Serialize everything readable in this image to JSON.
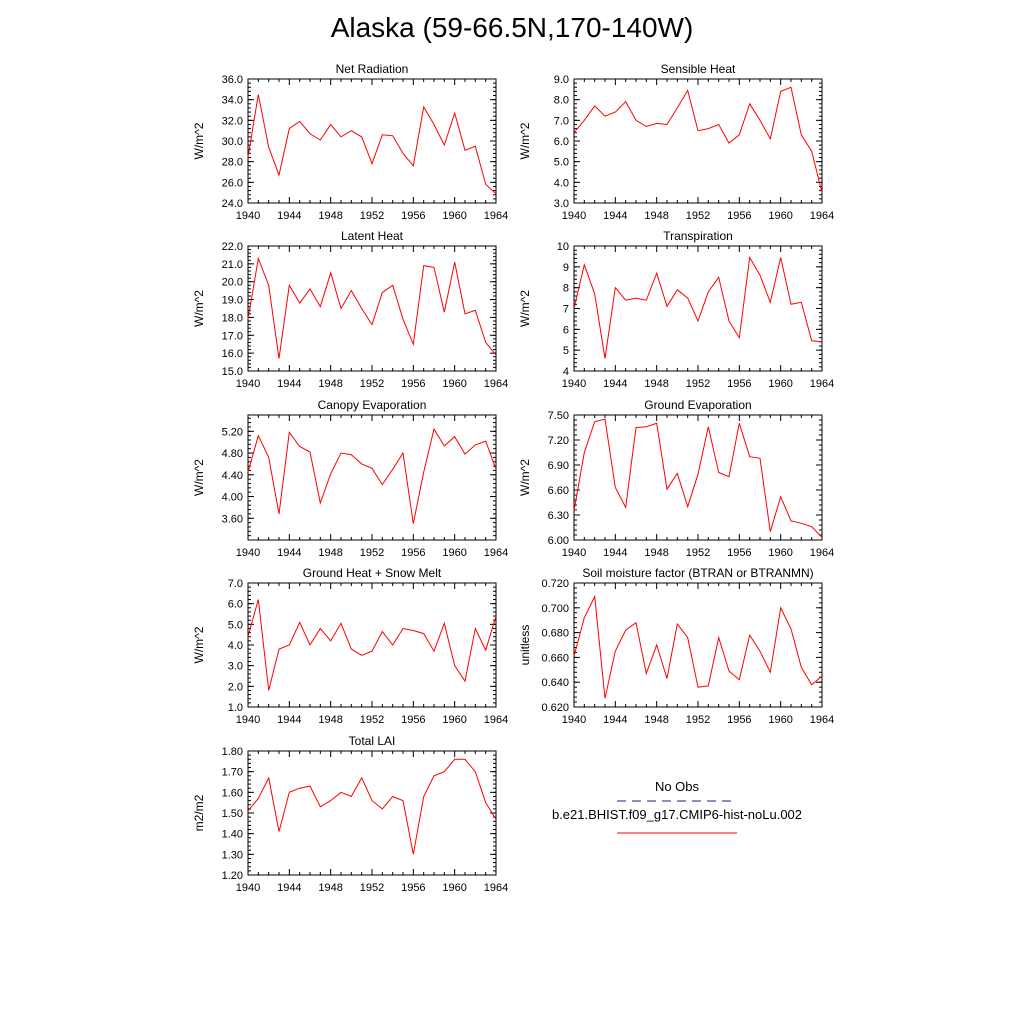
{
  "title": "Alaska (59-66.5N,170-140W)",
  "legend": {
    "items": [
      {
        "label": "No Obs",
        "color": "#1c1c8c",
        "dash": true
      },
      {
        "label": "b.e21.BHIST.f09_g17.CMIP6-hist-noLu.002",
        "color": "#ff0000",
        "dash": false
      }
    ]
  },
  "chart_data": [
    {
      "type": "line",
      "title": "Net Radiation",
      "ylabel": "W/m^2",
      "xlim": [
        1940,
        1964
      ],
      "ylim": [
        24.0,
        36.0
      ],
      "xticks": [
        "1940",
        "1944",
        "1948",
        "1952",
        "1956",
        "1960",
        "1964"
      ],
      "yticks": [
        "24.0",
        "26.0",
        "28.0",
        "30.0",
        "32.0",
        "34.0",
        "36.0"
      ],
      "x": [
        1940,
        1941,
        1942,
        1943,
        1944,
        1945,
        1946,
        1947,
        1948,
        1949,
        1950,
        1951,
        1952,
        1953,
        1954,
        1955,
        1956,
        1957,
        1958,
        1959,
        1960,
        1961,
        1962,
        1963,
        1964
      ],
      "series": [
        {
          "values": [
            28.4,
            34.5,
            29.4,
            26.7,
            31.2,
            31.9,
            30.7,
            30.1,
            31.6,
            30.4,
            31.0,
            30.4,
            27.8,
            30.6,
            30.5,
            28.8,
            27.6,
            33.3,
            31.6,
            29.6,
            32.7,
            29.1,
            29.5,
            25.8,
            24.9
          ],
          "color": "#ff0000"
        }
      ]
    },
    {
      "type": "line",
      "title": "Sensible Heat",
      "ylabel": "W/m^2",
      "xlim": [
        1940,
        1964
      ],
      "ylim": [
        3.0,
        9.0
      ],
      "xticks": [
        "1940",
        "1944",
        "1948",
        "1952",
        "1956",
        "1960",
        "1964"
      ],
      "yticks": [
        "3.0",
        "4.0",
        "5.0",
        "6.0",
        "7.0",
        "8.0",
        "9.0"
      ],
      "x": [
        1940,
        1941,
        1942,
        1943,
        1944,
        1945,
        1946,
        1947,
        1948,
        1949,
        1950,
        1951,
        1952,
        1953,
        1954,
        1955,
        1956,
        1957,
        1958,
        1959,
        1960,
        1961,
        1962,
        1963,
        1964
      ],
      "series": [
        {
          "values": [
            6.4,
            7.0,
            7.7,
            7.2,
            7.4,
            7.9,
            7.0,
            6.7,
            6.85,
            6.8,
            7.6,
            8.45,
            6.5,
            6.6,
            6.8,
            5.9,
            6.3,
            7.8,
            7.0,
            6.1,
            8.4,
            8.6,
            6.3,
            5.5,
            3.5
          ],
          "color": "#ff0000"
        }
      ]
    },
    {
      "type": "line",
      "title": "Latent Heat",
      "ylabel": "W/m^2",
      "xlim": [
        1940,
        1964
      ],
      "ylim": [
        15.0,
        22.0
      ],
      "xticks": [
        "1940",
        "1944",
        "1948",
        "1952",
        "1956",
        "1960",
        "1964"
      ],
      "yticks": [
        "15.0",
        "16.0",
        "17.0",
        "18.0",
        "19.0",
        "20.0",
        "21.0",
        "22.0"
      ],
      "x": [
        1940,
        1941,
        1942,
        1943,
        1944,
        1945,
        1946,
        1947,
        1948,
        1949,
        1950,
        1951,
        1952,
        1953,
        1954,
        1955,
        1956,
        1957,
        1958,
        1959,
        1960,
        1961,
        1962,
        1963,
        1964
      ],
      "series": [
        {
          "values": [
            17.9,
            21.3,
            19.8,
            15.7,
            19.8,
            18.8,
            19.6,
            18.6,
            20.5,
            18.5,
            19.5,
            18.5,
            17.6,
            19.4,
            19.8,
            17.9,
            16.5,
            20.9,
            20.8,
            18.3,
            21.1,
            18.2,
            18.4,
            16.6,
            15.9
          ],
          "color": "#ff0000"
        }
      ]
    },
    {
      "type": "line",
      "title": "Transpiration",
      "ylabel": "W/m^2",
      "xlim": [
        1940,
        1964
      ],
      "ylim": [
        4,
        10
      ],
      "xticks": [
        "1940",
        "1944",
        "1948",
        "1952",
        "1956",
        "1960",
        "1964"
      ],
      "yticks": [
        "4",
        "5",
        "6",
        "7",
        "8",
        "9",
        "10"
      ],
      "x": [
        1940,
        1941,
        1942,
        1943,
        1944,
        1945,
        1946,
        1947,
        1948,
        1949,
        1950,
        1951,
        1952,
        1953,
        1954,
        1955,
        1956,
        1957,
        1958,
        1959,
        1960,
        1961,
        1962,
        1963,
        1964
      ],
      "series": [
        {
          "values": [
            7.0,
            9.1,
            7.7,
            4.6,
            8.0,
            7.4,
            7.5,
            7.4,
            8.7,
            7.1,
            7.9,
            7.5,
            6.4,
            7.8,
            8.5,
            6.4,
            5.6,
            9.45,
            8.6,
            7.3,
            9.45,
            7.2,
            7.3,
            5.45,
            5.4
          ],
          "color": "#ff0000"
        }
      ]
    },
    {
      "type": "line",
      "title": "Canopy Evaporation",
      "ylabel": "W/m^2",
      "xlim": [
        1940,
        1964
      ],
      "ylim": [
        3.2,
        5.5
      ],
      "xticks": [
        "1940",
        "1944",
        "1948",
        "1952",
        "1956",
        "1960",
        "1964"
      ],
      "yticks": [
        "3.60",
        "4.00",
        "4.40",
        "4.80",
        "5.20"
      ],
      "x": [
        1940,
        1941,
        1942,
        1943,
        1944,
        1945,
        1946,
        1947,
        1948,
        1949,
        1950,
        1951,
        1952,
        1953,
        1954,
        1955,
        1956,
        1957,
        1958,
        1959,
        1960,
        1961,
        1962,
        1963,
        1964
      ],
      "series": [
        {
          "values": [
            4.45,
            5.12,
            4.72,
            3.68,
            5.18,
            4.92,
            4.82,
            3.88,
            4.42,
            4.8,
            4.77,
            4.6,
            4.52,
            4.22,
            4.5,
            4.8,
            3.5,
            4.45,
            5.24,
            4.93,
            5.1,
            4.78,
            4.95,
            5.02,
            4.5
          ],
          "color": "#ff0000"
        }
      ]
    },
    {
      "type": "line",
      "title": "Ground Evaporation",
      "ylabel": "W/m^2",
      "xlim": [
        1940,
        1964
      ],
      "ylim": [
        6.0,
        7.5
      ],
      "xticks": [
        "1940",
        "1944",
        "1948",
        "1952",
        "1956",
        "1960",
        "1964"
      ],
      "yticks": [
        "6.00",
        "6.30",
        "6.60",
        "6.90",
        "7.20",
        "7.50"
      ],
      "x": [
        1940,
        1941,
        1942,
        1943,
        1944,
        1945,
        1946,
        1947,
        1948,
        1949,
        1950,
        1951,
        1952,
        1953,
        1954,
        1955,
        1956,
        1957,
        1958,
        1959,
        1960,
        1961,
        1962,
        1963,
        1964
      ],
      "series": [
        {
          "values": [
            6.35,
            7.05,
            7.42,
            7.45,
            6.63,
            6.39,
            7.35,
            7.36,
            7.4,
            6.61,
            6.8,
            6.4,
            6.79,
            7.36,
            6.81,
            6.76,
            7.4,
            7.0,
            6.98,
            6.1,
            6.52,
            6.23,
            6.2,
            6.16,
            6.03
          ],
          "color": "#ff0000"
        }
      ]
    },
    {
      "type": "line",
      "title": "Ground Heat + Snow Melt",
      "ylabel": "W/m^2",
      "xlim": [
        1940,
        1964
      ],
      "ylim": [
        1.0,
        7.0
      ],
      "xticks": [
        "1940",
        "1944",
        "1948",
        "1952",
        "1956",
        "1960",
        "1964"
      ],
      "yticks": [
        "1.0",
        "2.0",
        "3.0",
        "4.0",
        "5.0",
        "6.0",
        "7.0"
      ],
      "x": [
        1940,
        1941,
        1942,
        1943,
        1944,
        1945,
        1946,
        1947,
        1948,
        1949,
        1950,
        1951,
        1952,
        1953,
        1954,
        1955,
        1956,
        1957,
        1958,
        1959,
        1960,
        1961,
        1962,
        1963,
        1964
      ],
      "series": [
        {
          "values": [
            4.4,
            6.2,
            1.8,
            3.8,
            4.0,
            5.1,
            4.0,
            4.8,
            4.2,
            5.05,
            3.8,
            3.5,
            3.7,
            4.65,
            4.0,
            4.8,
            4.7,
            4.55,
            3.7,
            5.05,
            3.0,
            2.25,
            4.8,
            3.75,
            5.4
          ],
          "color": "#ff0000"
        }
      ]
    },
    {
      "type": "line",
      "title": "Soil moisture factor (BTRAN or BTRANMN)",
      "ylabel": "unitless",
      "xlim": [
        1940,
        1964
      ],
      "ylim": [
        0.62,
        0.72
      ],
      "xticks": [
        "1940",
        "1944",
        "1948",
        "1952",
        "1956",
        "1960",
        "1964"
      ],
      "yticks": [
        "0.620",
        "0.640",
        "0.660",
        "0.680",
        "0.700",
        "0.720"
      ],
      "x": [
        1940,
        1941,
        1942,
        1943,
        1944,
        1945,
        1946,
        1947,
        1948,
        1949,
        1950,
        1951,
        1952,
        1953,
        1954,
        1955,
        1956,
        1957,
        1958,
        1959,
        1960,
        1961,
        1962,
        1963,
        1964
      ],
      "series": [
        {
          "values": [
            0.661,
            0.692,
            0.709,
            0.627,
            0.665,
            0.682,
            0.688,
            0.647,
            0.67,
            0.643,
            0.687,
            0.676,
            0.636,
            0.637,
            0.676,
            0.649,
            0.642,
            0.678,
            0.665,
            0.648,
            0.7,
            0.683,
            0.652,
            0.638,
            0.645
          ],
          "color": "#ff0000"
        }
      ]
    },
    {
      "type": "line",
      "title": "Total LAI",
      "ylabel": "m2/m2",
      "xlim": [
        1940,
        1964
      ],
      "ylim": [
        1.2,
        1.8
      ],
      "xticks": [
        "1940",
        "1944",
        "1948",
        "1952",
        "1956",
        "1960",
        "1964"
      ],
      "yticks": [
        "1.20",
        "1.30",
        "1.40",
        "1.50",
        "1.60",
        "1.70",
        "1.80"
      ],
      "x": [
        1940,
        1941,
        1942,
        1943,
        1944,
        1945,
        1946,
        1947,
        1948,
        1949,
        1950,
        1951,
        1952,
        1953,
        1954,
        1955,
        1956,
        1957,
        1958,
        1959,
        1960,
        1961,
        1962,
        1963,
        1964
      ],
      "series": [
        {
          "values": [
            1.51,
            1.57,
            1.67,
            1.41,
            1.6,
            1.62,
            1.63,
            1.53,
            1.56,
            1.6,
            1.58,
            1.67,
            1.56,
            1.52,
            1.58,
            1.56,
            1.3,
            1.58,
            1.68,
            1.7,
            1.76,
            1.76,
            1.7,
            1.55,
            1.47
          ],
          "color": "#ff0000"
        }
      ]
    }
  ]
}
